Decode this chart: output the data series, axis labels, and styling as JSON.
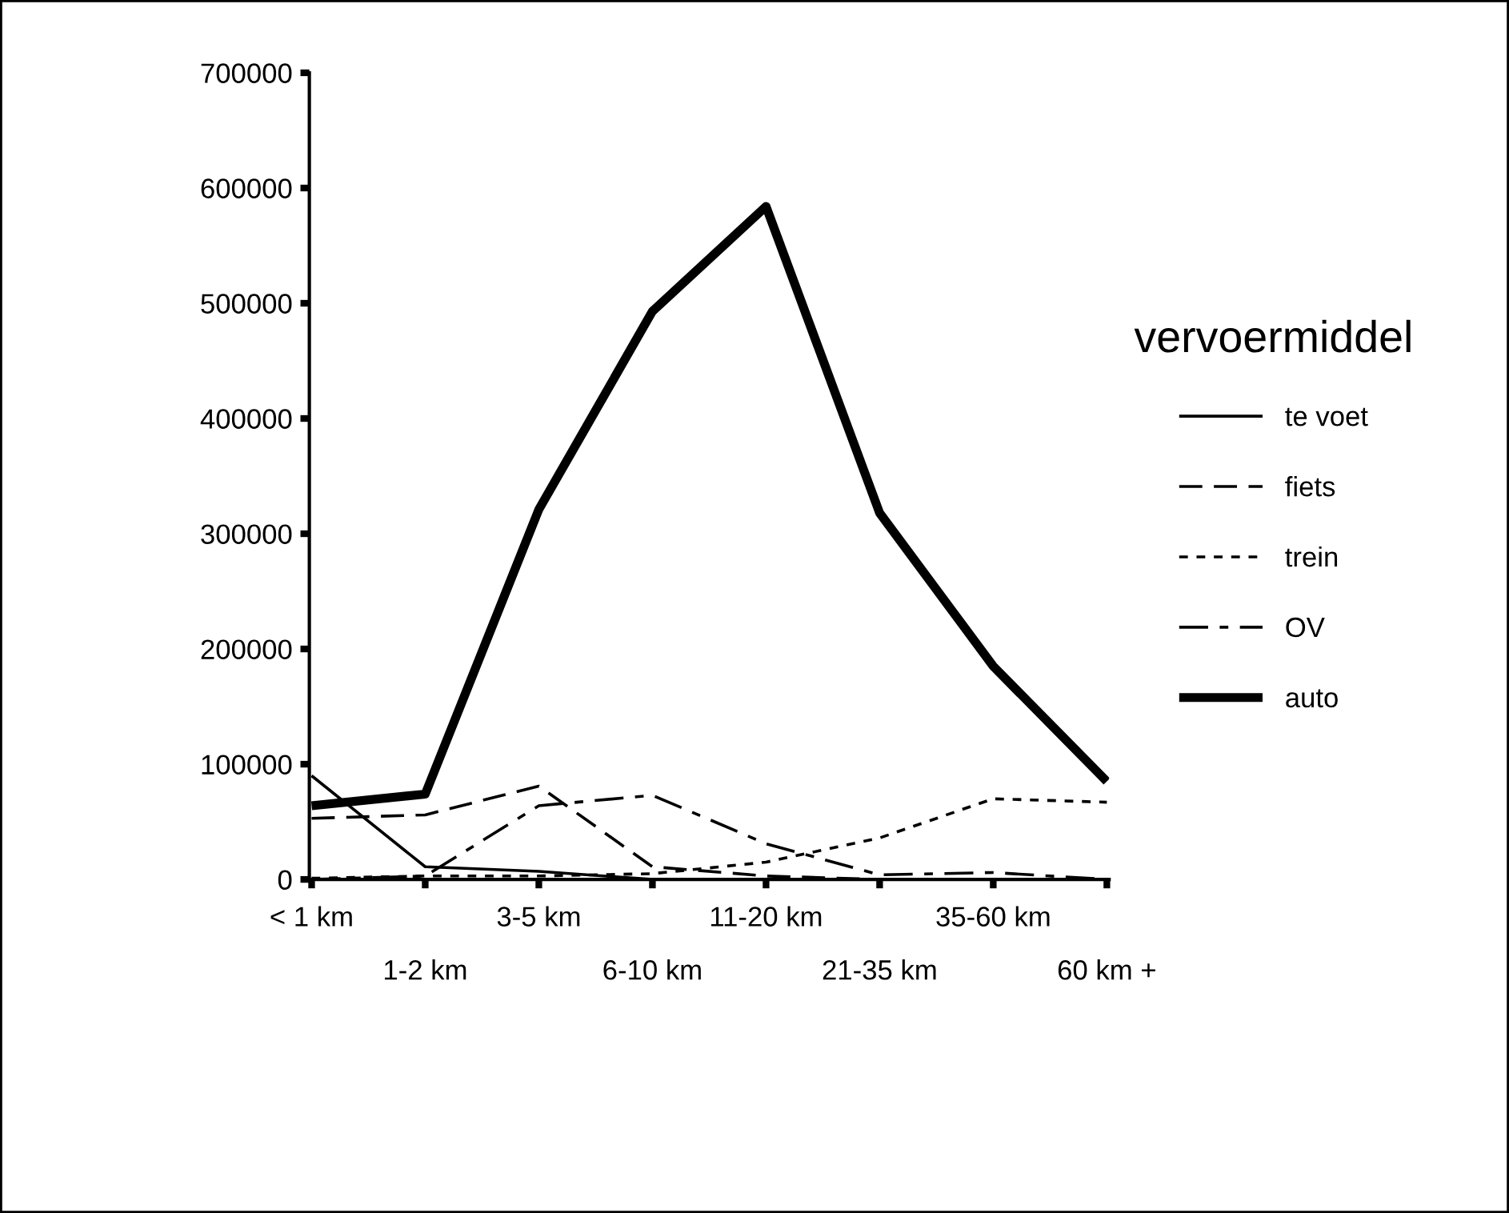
{
  "chart_data": {
    "type": "line",
    "legend_title": "vervoermiddel",
    "legend": "right",
    "grid": false,
    "categories": [
      "< 1 km",
      "1-2 km",
      "3-5 km",
      "6-10 km",
      "11-20 km",
      "21-35 km",
      "35-60 km",
      "60 km +"
    ],
    "ylim": [
      0,
      700000
    ],
    "yticks": [
      0,
      100000,
      200000,
      300000,
      400000,
      500000,
      600000,
      700000
    ],
    "series": [
      {
        "name": "te voet",
        "color": "#000000",
        "line_style": "solid",
        "values": [
          90000,
          11000,
          7000,
          0,
          0,
          0,
          0,
          0
        ]
      },
      {
        "name": "fiets",
        "color": "#000000",
        "line_style": "dashed",
        "values": [
          53000,
          56000,
          81000,
          11000,
          3000,
          0,
          0,
          0
        ]
      },
      {
        "name": "trein",
        "color": "#000000",
        "line_style": "dotted",
        "values": [
          1000,
          3000,
          3000,
          5000,
          15000,
          36000,
          70000,
          67000
        ]
      },
      {
        "name": "OV",
        "color": "#000000",
        "line_style": "dashdot",
        "values": [
          0,
          3000,
          64000,
          73000,
          31000,
          4000,
          6000,
          0
        ]
      },
      {
        "name": "auto",
        "color": "#000000",
        "line_style": "solid",
        "values": [
          64000,
          74000,
          321000,
          493000,
          584000,
          318000,
          185000,
          85000
        ]
      }
    ]
  }
}
